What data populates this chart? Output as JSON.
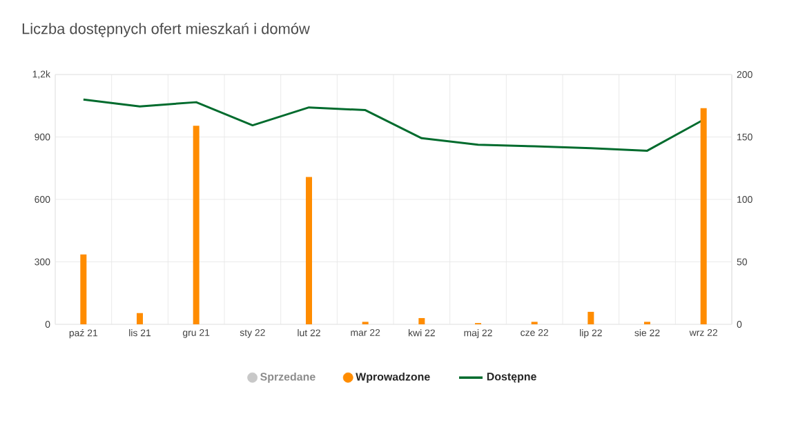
{
  "chart_data": {
    "type": "bar",
    "title": "Liczba dostępnych ofert mieszkań i domów",
    "categories": [
      "paź 21",
      "lis 21",
      "gru 21",
      "sty 22",
      "lut 22",
      "mar 22",
      "kwi 22",
      "maj 22",
      "cze 22",
      "lip 22",
      "sie 22",
      "wrz 22"
    ],
    "series": [
      {
        "name": "Sprzedane",
        "color": "#c8c8c8",
        "axis": "y2",
        "values": [
          null,
          null,
          null,
          null,
          null,
          null,
          null,
          null,
          null,
          null,
          null,
          null
        ]
      },
      {
        "name": "Wprowadzone",
        "color": "#ff8c00",
        "axis": "y2",
        "values": [
          56,
          9,
          159,
          0,
          118,
          2,
          5,
          1,
          2,
          10,
          2,
          173
        ]
      },
      {
        "name": "Dostępne",
        "type": "line",
        "color": "#006b2d",
        "axis": "y",
        "values": [
          1080,
          1047,
          1067,
          956,
          1042,
          1029,
          894,
          863,
          855,
          846,
          834,
          983
        ]
      }
    ],
    "ylim": [
      0,
      1200
    ],
    "yticks": [
      0,
      300,
      600,
      900,
      {
        "value": 1200,
        "label": "1,2k"
      }
    ],
    "y2lim": [
      0,
      200
    ],
    "y2ticks": [
      0,
      50,
      100,
      150,
      200
    ],
    "grid": true,
    "legend": "bottom",
    "marker": "none",
    "line_style": "solid"
  }
}
